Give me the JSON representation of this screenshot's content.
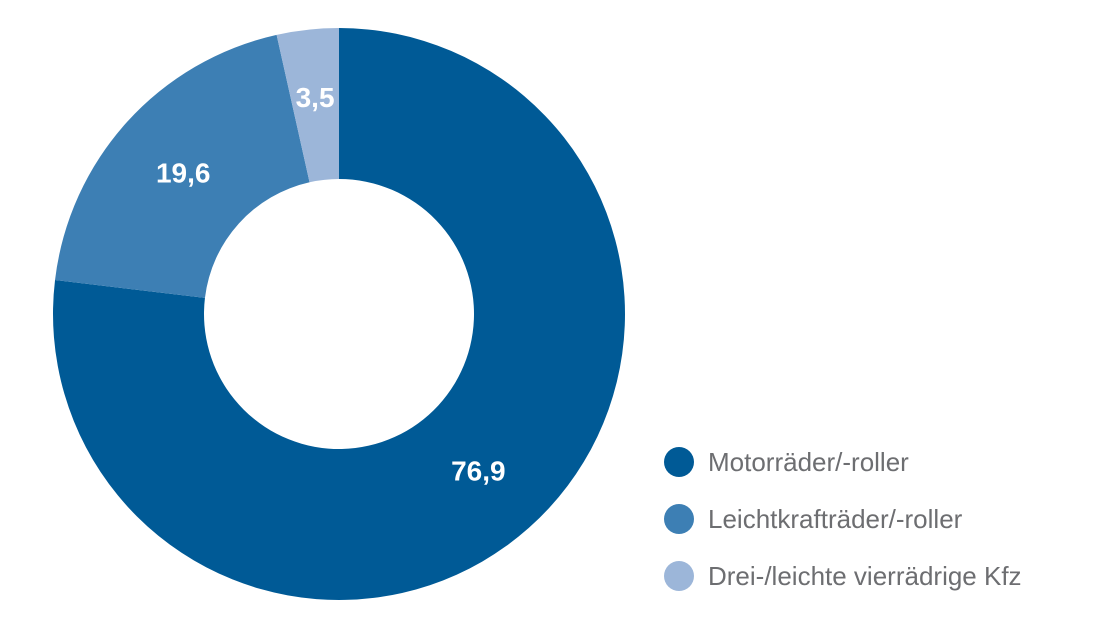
{
  "chart_data": {
    "type": "pie",
    "donut": true,
    "title": "",
    "categories": [
      "Motorräder/-roller",
      "Leichtkrafträder/-roller",
      "Drei-/leichte vierrädrige Kfz"
    ],
    "values": [
      76.9,
      19.6,
      3.5
    ],
    "value_labels": [
      "76,9",
      "19,6",
      "3,5"
    ],
    "colors": [
      "#005a96",
      "#3d7fb4",
      "#9cb6d9"
    ],
    "legend_position": "bottom-right"
  }
}
